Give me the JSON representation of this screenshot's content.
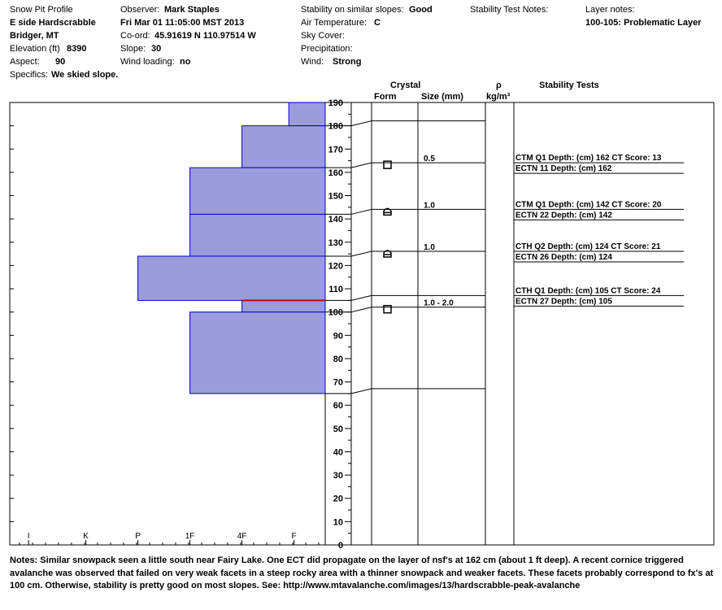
{
  "header": {
    "profile_title": "Snow Pit Profile",
    "location": "E side Hardscrabble",
    "area": "Bridger, MT",
    "elevation_label": "Elevation (ft)",
    "elevation_value": "8390",
    "aspect_label": "Aspect:",
    "aspect_value": "90",
    "specifics_label": "Specifics:",
    "specifics_value": "We skied slope.",
    "observer_label": "Observer:",
    "observer_value": "Mark Staples",
    "datetime": "Fri Mar 01 11:05:00 MST 2013",
    "coord_label": "Co-ord:",
    "coord_value": "45.91619 N 110.97514 W",
    "slope_label": "Slope:",
    "slope_value": "30",
    "wind_loading_label": "Wind loading:",
    "wind_loading_value": "no",
    "stability_label": "Stability on similar slopes:",
    "stability_value": "Good",
    "air_temp_label": "Air Temperature:",
    "air_temp_value": "C",
    "sky_cover_label": "Sky Cover:",
    "precip_label": "Precipitation:",
    "wind_label": "Wind:",
    "wind_value": "Strong",
    "stability_notes_label": "Stability Test Notes:",
    "layer_notes_label": "Layer notes:",
    "layer_notes_value": "100-105: Problematic Layer"
  },
  "columns": {
    "crystal": "Crystal",
    "form": "Form",
    "size": "Size (mm)",
    "rho": "ρ",
    "density_unit": "kg/m³",
    "stability_tests": "Stability Tests"
  },
  "notes": {
    "label": "Notes:",
    "text": "Similar snowpack seen a little south near Fairy Lake. One ECT did propagate on the layer of nsf's at 162 cm (about 1 ft deep). A recent cornice triggered avalanche was observed that failed on very weak facets in a steep rocky area with a thinner snowpack and weaker facets. These facets probably correspond to fx's at 100 cm. Otherwise, stability is pretty good on most slopes. See: http://www.mtavalanche.com/images/13/hardscrabble-peak-avalanche"
  },
  "chart_data": {
    "type": "bar",
    "orientation": "horizontal",
    "y_axis_label": "",
    "ylim": [
      0,
      190
    ],
    "y_ticks": [
      0,
      10,
      20,
      30,
      40,
      50,
      60,
      70,
      80,
      90,
      100,
      110,
      120,
      130,
      140,
      150,
      160,
      170,
      180,
      190
    ],
    "hardness_ticks": [
      "I",
      "K",
      "P",
      "1F",
      "4F",
      "F"
    ],
    "layers": [
      {
        "top": 190,
        "bottom": 180,
        "hardness": "F",
        "hardness_index": 0.7
      },
      {
        "top": 180,
        "bottom": 162,
        "hardness": "4F",
        "hardness_index": 1.6
      },
      {
        "top": 162,
        "bottom": 142,
        "hardness": "1F",
        "hardness_index": 2.6
      },
      {
        "top": 142,
        "bottom": 124,
        "hardness": "1F",
        "hardness_index": 2.6
      },
      {
        "top": 124,
        "bottom": 105,
        "hardness": "P",
        "hardness_index": 3.6
      },
      {
        "top": 105,
        "bottom": 100,
        "hardness": "4F",
        "hardness_index": 1.6
      },
      {
        "top": 100,
        "bottom": 65,
        "hardness": "1F",
        "hardness_index": 2.6
      }
    ],
    "red_line_depth": 105,
    "crystals": [
      {
        "depth": 162,
        "form": "square",
        "size": "0.5"
      },
      {
        "depth": 142,
        "form": "arch",
        "size": "1.0"
      },
      {
        "depth": 124,
        "form": "arch",
        "size": "1.0"
      },
      {
        "depth": 100,
        "form": "square",
        "size": "1.0 - 2.0"
      }
    ],
    "stability_tests": [
      {
        "depth": 162,
        "line1": "CTM Q1 Depth: (cm) 162 CT Score: 13",
        "line2": "ECTN 11  Depth: (cm) 162"
      },
      {
        "depth": 142,
        "line1": "CTM Q1 Depth: (cm) 142 CT Score: 20",
        "line2": "ECTN 22  Depth: (cm) 142"
      },
      {
        "depth": 124,
        "line1": "CTH Q2 Depth: (cm) 124 CT Score: 21",
        "line2": "ECTN 26  Depth: (cm) 124"
      },
      {
        "depth": 105,
        "line1": "CTH Q1 Depth: (cm) 105 CT Score: 24",
        "line2": "ECTN 27  Depth: (cm) 105"
      }
    ],
    "colors": {
      "fill": "#9c9cdc",
      "edge": "#0000cc",
      "red": "#cc0000"
    }
  }
}
